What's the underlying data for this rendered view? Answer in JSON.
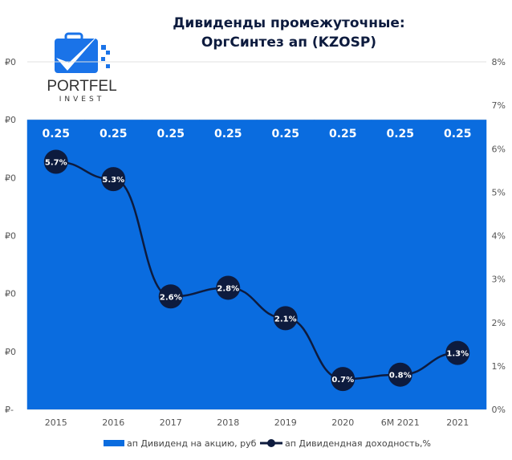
{
  "logo": {
    "text": "PORTFEL",
    "subtext": "INVEST",
    "color": "#1a73e8"
  },
  "chart_data": {
    "type": "bar+line",
    "title": [
      "Дивиденды промежуточные:",
      "ОргСинтез ап (KZOSP)"
    ],
    "categories": [
      "2015",
      "2016",
      "2017",
      "2018",
      "2019",
      "2020",
      "6M 2021",
      "2021"
    ],
    "series": [
      {
        "name": "ап Дивиденд на акцию, руб",
        "type": "bar",
        "axis": "left",
        "values": [
          0.25,
          0.25,
          0.25,
          0.25,
          0.25,
          0.25,
          0.25,
          0.25
        ],
        "labels": [
          "0.25",
          "0.25",
          "0.25",
          "0.25",
          "0.25",
          "0.25",
          "0.25",
          "0.25"
        ],
        "color": "#0a6cdf"
      },
      {
        "name": "ап Дивидендная доходность,%",
        "type": "line",
        "axis": "right",
        "values": [
          5.7,
          5.3,
          2.6,
          2.8,
          2.1,
          0.7,
          0.8,
          1.3
        ],
        "labels": [
          "5.7%",
          "5.3%",
          "2.6%",
          "2.8%",
          "2.1%",
          "0.7%",
          "0.8%",
          "1.3%"
        ],
        "color": "#0d1b3e"
      }
    ],
    "left_axis": {
      "ylim": [
        0,
        0.3
      ],
      "tick_labels": [
        "₽-",
        "₽0",
        "₽0",
        "₽0",
        "₽0",
        "₽0",
        "₽0"
      ]
    },
    "right_axis": {
      "ylim": [
        0,
        8
      ],
      "tick_labels": [
        "0%",
        "1%",
        "2%",
        "3%",
        "4%",
        "5%",
        "6%",
        "7%",
        "8%"
      ]
    },
    "grid": true,
    "legend": "bottom"
  }
}
